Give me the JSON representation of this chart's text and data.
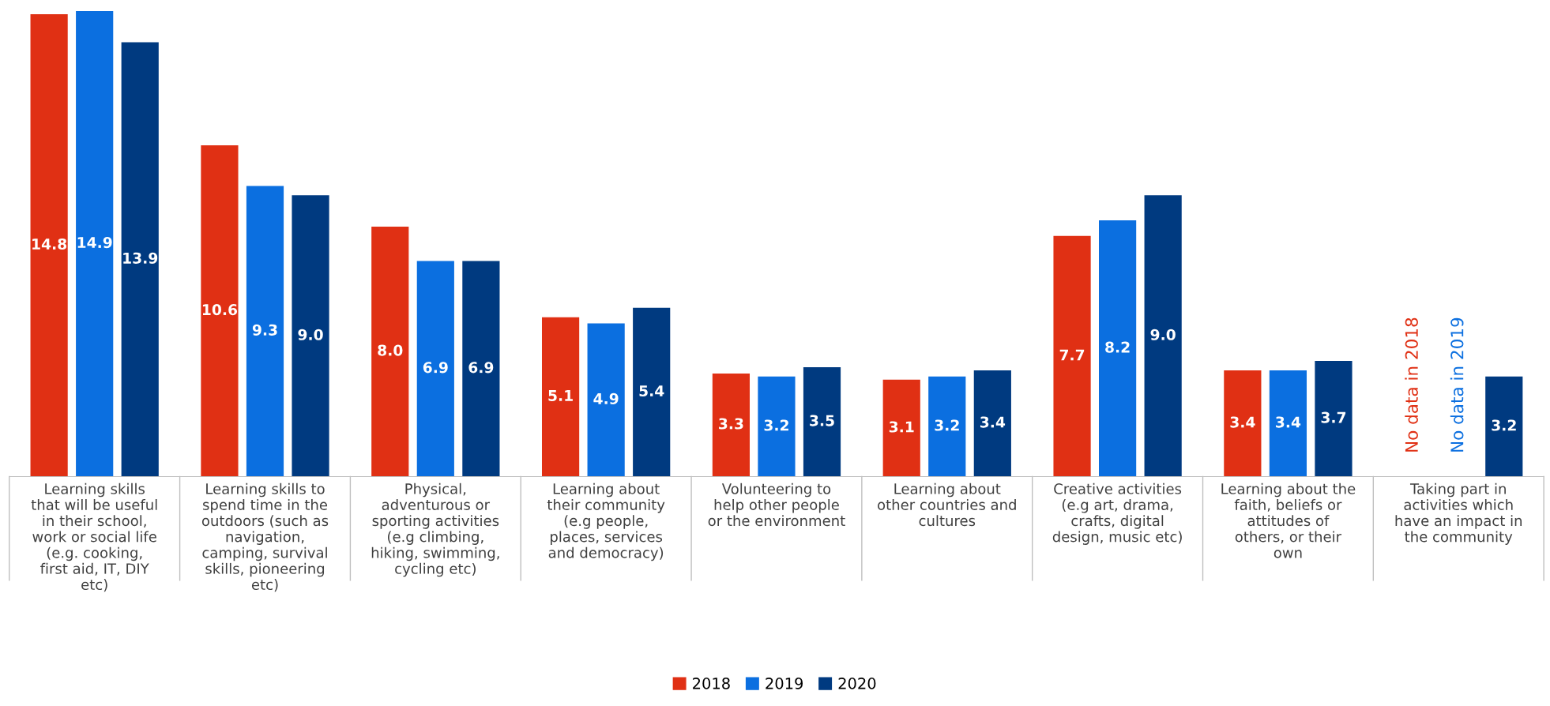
{
  "chart_data": {
    "type": "bar",
    "categories": [
      "Learning skills that will be useful in their school, work or social life (e.g. cooking, first aid, IT, DIY etc)",
      "Learning skills to spend time in the outdoors (such as navigation, camping, survival skills, pioneering etc)",
      "Physical, adventurous or sporting activities (e.g climbing, hiking, swimming, cycling etc)",
      "Learning about their community (e.g people, places, services and democracy)",
      "Volunteering to help other people or the environment",
      "Learning about other countries and cultures",
      "Creative activities (e.g art, drama, crafts, digital design, music etc)",
      "Learning about the faith, beliefs or attitudes of others, or their own",
      "Taking part in activities which have an impact in the community"
    ],
    "series": [
      {
        "name": "2018",
        "color": "#e03014",
        "values": [
          14.8,
          10.6,
          8.0,
          5.1,
          3.3,
          3.1,
          7.7,
          3.4,
          null
        ],
        "value_labels": [
          "14.8",
          "10.6",
          "8.0",
          "5.1",
          "3.3",
          "3.1",
          "7.7",
          "3.4",
          null
        ]
      },
      {
        "name": "2019",
        "color": "#0b6fe0",
        "values": [
          14.9,
          9.3,
          6.9,
          4.9,
          3.2,
          3.2,
          8.2,
          3.4,
          null
        ],
        "value_labels": [
          "14.9",
          "9.3",
          "6.9",
          "4.9",
          "3.2",
          "3.2",
          "8.2",
          "3.4",
          null
        ]
      },
      {
        "name": "2020",
        "color": "#003a80",
        "values": [
          13.9,
          9.0,
          6.9,
          5.4,
          3.5,
          3.4,
          9.0,
          3.7,
          3.2
        ],
        "value_labels": [
          "13.9",
          "9.0",
          "6.9",
          "5.4",
          "3.5",
          "3.4",
          "9.0",
          "3.7",
          "3.2"
        ]
      }
    ],
    "annotations": [
      "No data in 2018",
      "No data in 2019"
    ],
    "legend": "bottom",
    "grid": false
  }
}
